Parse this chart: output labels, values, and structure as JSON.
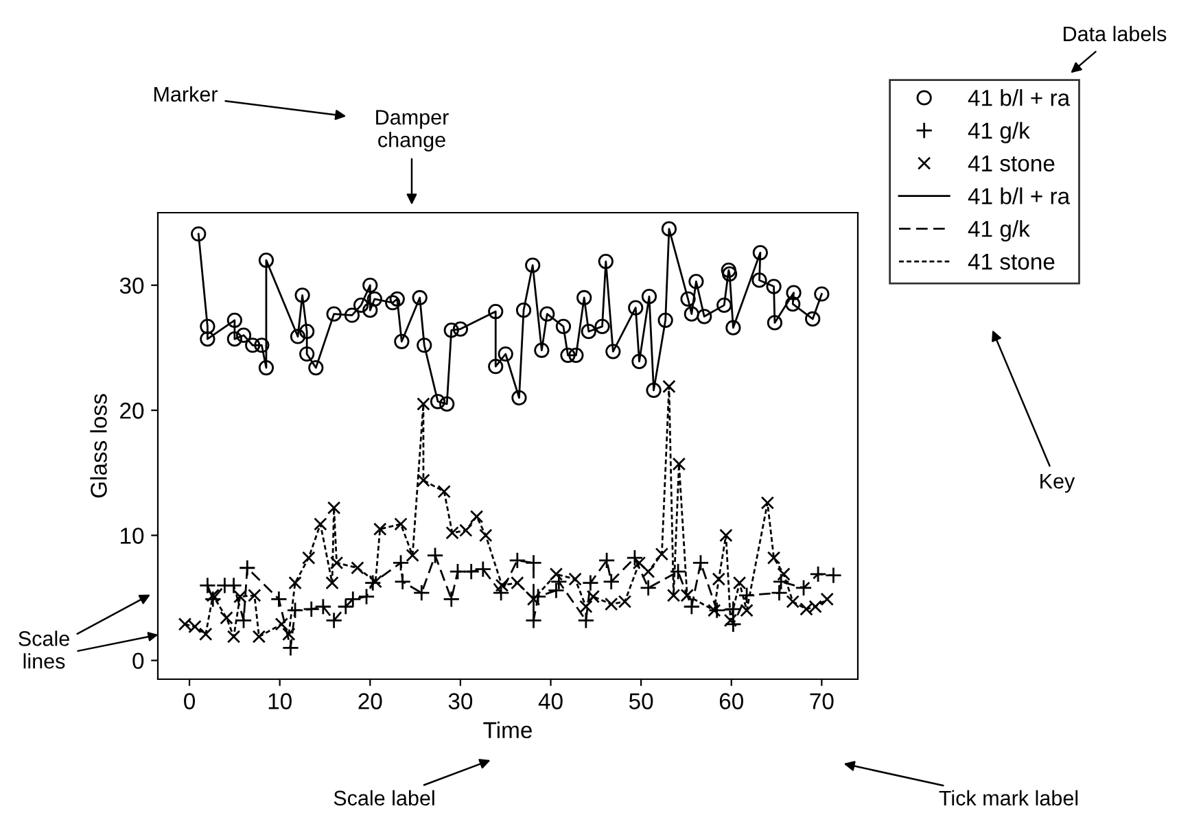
{
  "chart_data": {
    "type": "line",
    "xlabel": "Time",
    "ylabel": "Glass loss",
    "xlim": [
      -3.5,
      74
    ],
    "ylim": [
      -1.5,
      35.8
    ],
    "xticks": [
      0,
      10,
      20,
      30,
      40,
      50,
      60,
      70
    ],
    "yticks": [
      0,
      10,
      20,
      30
    ],
    "grid": false,
    "legend": "top right",
    "series": [
      {
        "name": "41 b/l + ra",
        "color": "#000000",
        "marker": "circle",
        "line_style": "solid",
        "x": [
          1,
          2,
          2,
          5,
          5,
          6,
          7,
          8,
          8.5,
          8.5,
          12,
          12.5,
          13,
          13,
          14,
          16,
          18,
          19,
          20,
          20,
          20.5,
          22.5,
          23,
          23.5,
          25.5,
          26,
          27.5,
          28.5,
          29,
          30,
          33.9,
          33.9,
          35,
          36.5,
          37,
          38,
          39,
          39.6,
          41.4,
          41.9,
          42.8,
          43.7,
          44.2,
          45.7,
          46.1,
          46.9,
          49.4,
          49.8,
          50.9,
          51.4,
          52.7,
          53.1,
          55.2,
          55.6,
          56.1,
          57,
          59.2,
          59.7,
          59.8,
          60.2,
          63.2,
          63.1,
          64.7,
          64.8,
          66.9,
          66.8,
          69,
          70
        ],
        "values": [
          34.1,
          26.7,
          25.7,
          27.2,
          25.7,
          26,
          25.2,
          25.2,
          23.4,
          32,
          25.9,
          29.2,
          26.3,
          24.5,
          23.4,
          27.7,
          27.6,
          28.4,
          30,
          28,
          28.9,
          28.6,
          28.9,
          25.5,
          29,
          25.2,
          20.7,
          20.5,
          26.4,
          26.5,
          27.9,
          23.5,
          24.5,
          21,
          28,
          31.6,
          24.8,
          27.7,
          26.7,
          24.4,
          24.4,
          29,
          26.3,
          26.7,
          31.9,
          24.7,
          28.2,
          23.9,
          29.1,
          21.6,
          27.2,
          34.5,
          28.9,
          27.7,
          30.3,
          27.5,
          28.4,
          31.2,
          30.9,
          26.6,
          32.6,
          30.4,
          29.9,
          27,
          29.4,
          28.5,
          27.3,
          29.3
        ]
      },
      {
        "name": "41 g/k",
        "color": "#000000",
        "marker": "plus",
        "line_style": "dashed",
        "x": [
          2,
          2.6,
          3.9,
          4.9,
          6,
          6.4,
          9.9,
          11.2,
          11.7,
          13.5,
          14.8,
          16,
          17.3,
          18.1,
          19.6,
          20.3,
          23.4,
          23.6,
          25.7,
          27.2,
          29,
          29.7,
          31.2,
          32.5,
          34.5,
          36.3,
          38.1,
          38.1,
          38.6,
          40.6,
          40.9,
          43.9,
          44.4,
          46.2,
          46.7,
          49.3,
          50.8,
          54.1,
          55.6,
          56.6,
          58.4,
          60.2,
          60.2,
          61.7,
          65.3,
          65.5,
          68,
          69.6,
          71.3
        ],
        "values": [
          6,
          4.9,
          6,
          6,
          3.2,
          7.4,
          4.9,
          1,
          4,
          4.1,
          4.3,
          3.2,
          4.3,
          4.9,
          5.1,
          6.2,
          7.8,
          6.3,
          5.4,
          8.4,
          4.9,
          7.1,
          7.1,
          7.3,
          5.4,
          8,
          7.8,
          3.2,
          5.1,
          5.6,
          6.3,
          3.2,
          6.2,
          8,
          6.3,
          8.2,
          5.8,
          7.1,
          4.3,
          7.8,
          4,
          4.1,
          2.9,
          5.2,
          5.4,
          6.3,
          5.8,
          6.9,
          6.8
        ]
      },
      {
        "name": "41 stone",
        "color": "#000000",
        "marker": "cross",
        "line_style": "dotted",
        "x": [
          -0.5,
          0.6,
          1.8,
          2.6,
          4.1,
          4.9,
          5.6,
          7.2,
          7.7,
          10.2,
          11,
          11.7,
          13.2,
          14.5,
          15.8,
          16,
          16.3,
          18.6,
          20.6,
          21.1,
          23.4,
          24.7,
          25.9,
          25.9,
          28.2,
          29.1,
          30.6,
          31.8,
          32.8,
          34.6,
          36.3,
          38.1,
          40.6,
          42.7,
          43.9,
          44.7,
          46.7,
          48.2,
          49.8,
          50.8,
          52.3,
          53.1,
          53.6,
          54.2,
          55.1,
          58.1,
          58.6,
          59.4,
          59.9,
          60.9,
          61.7,
          64,
          64.7,
          65.8,
          66.8,
          68.3,
          69.3,
          70.6
        ],
        "values": [
          2.9,
          2.7,
          2.1,
          5.2,
          3.4,
          1.9,
          5.1,
          5.2,
          1.9,
          2.9,
          2.1,
          6.2,
          8.2,
          10.9,
          6.2,
          12.2,
          7.8,
          7.4,
          6.3,
          10.5,
          10.9,
          8.4,
          20.5,
          14.4,
          13.5,
          10.2,
          10.4,
          11.5,
          10,
          6,
          6.2,
          4.9,
          6.9,
          6.5,
          4.3,
          5.1,
          4.5,
          4.7,
          7.8,
          7.1,
          8.5,
          21.9,
          5.2,
          15.7,
          5.2,
          4,
          6.5,
          10,
          3.2,
          6.2,
          4,
          12.6,
          8.2,
          6.9,
          4.7,
          4.1,
          4.3,
          4.9
        ]
      }
    ],
    "annotations": [
      "Marker",
      "Damper\nchange",
      "Data labels",
      "Key",
      "Scale\nlines",
      "Tick mark label",
      "Scale label"
    ]
  }
}
